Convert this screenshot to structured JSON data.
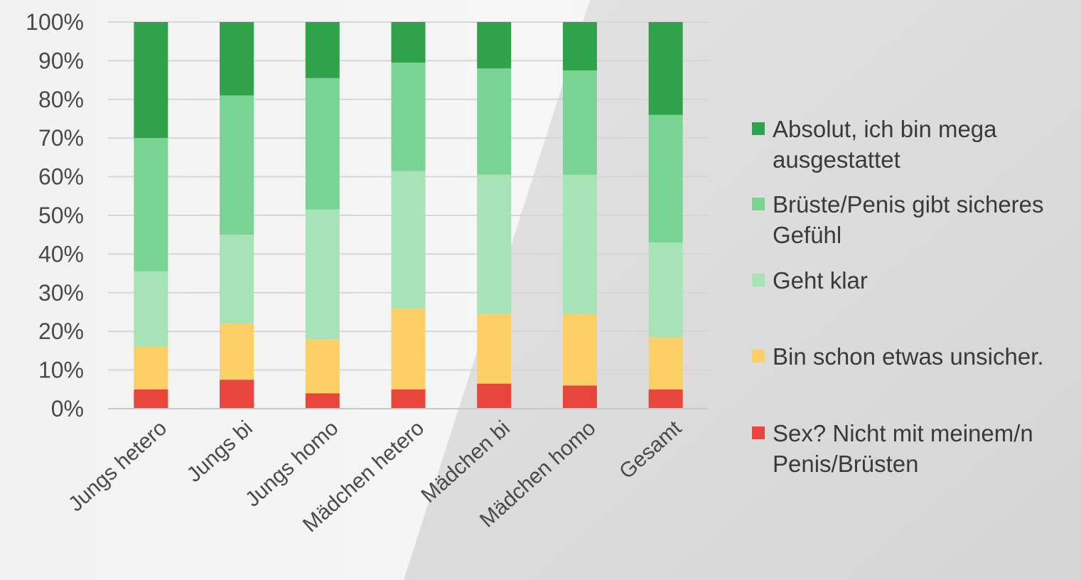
{
  "chart_data": {
    "type": "bar",
    "stacked": true,
    "percent": true,
    "categories": [
      "Jungs hetero",
      "Jungs bi",
      "Jungs homo",
      "Mädchen hetero",
      "Mädchen bi",
      "Mädchen homo",
      "Gesamt"
    ],
    "series": [
      {
        "name": "Sex? Nicht mit meinem/n Penis/Brüsten",
        "color": "#e8463c",
        "values": [
          5,
          7.5,
          4,
          5,
          6.5,
          6,
          5
        ]
      },
      {
        "name": "Bin schon etwas unsicher.",
        "color": "#fcd066",
        "values": [
          11,
          14.5,
          14,
          21,
          18,
          18.5,
          13.5
        ]
      },
      {
        "name": "Geht klar",
        "color": "#a8e2b7",
        "values": [
          19.5,
          23,
          33.5,
          35.5,
          36,
          36,
          24.5
        ]
      },
      {
        "name": "Brüste/Penis gibt sicheres Gefühl",
        "color": "#79d494",
        "values": [
          34.5,
          36,
          34,
          28,
          27.5,
          27,
          33
        ]
      },
      {
        "name": "Absolut, ich bin mega ausgestattet",
        "color": "#2fa24b",
        "values": [
          30,
          19,
          14.5,
          10.5,
          12,
          12.5,
          24
        ]
      }
    ],
    "yticks": [
      "0%",
      "10%",
      "20%",
      "30%",
      "40%",
      "50%",
      "60%",
      "70%",
      "80%",
      "90%",
      "100%"
    ],
    "ylim": [
      0,
      100
    ],
    "grid": true,
    "legend_position": "right",
    "title": "",
    "xlabel": "",
    "ylabel": ""
  },
  "legend": [
    {
      "label_line1": "Absolut, ich bin mega",
      "label_line2": "ausgestattet",
      "color": "#2fa24b"
    },
    {
      "label_line1": "Brüste/Penis gibt sicheres",
      "label_line2": "Gefühl",
      "color": "#79d494"
    },
    {
      "label_line1": "Geht klar",
      "label_line2": "",
      "color": "#a8e2b7"
    },
    {
      "label_line1": "Bin schon etwas unsicher.",
      "label_line2": "",
      "color": "#fcd066"
    },
    {
      "label_line1": "Sex? Nicht mit meinem/n",
      "label_line2": "Penis/Brüsten",
      "color": "#e8463c"
    }
  ]
}
